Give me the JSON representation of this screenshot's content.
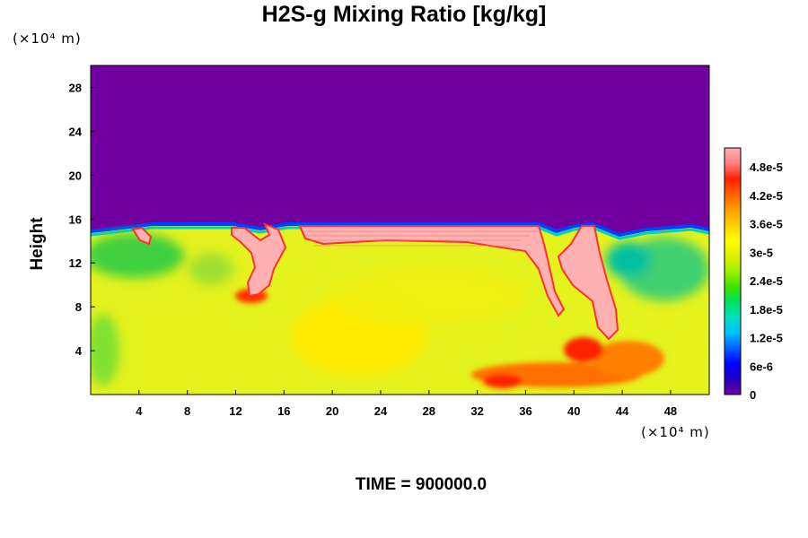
{
  "title": "H2S-g Mixing Ratio [kg/kg]",
  "time_label": "TIME = 900000.0",
  "chart_data": {
    "type": "heatmap",
    "title": "H2S-g Mixing Ratio [kg/kg]",
    "xlabel": "",
    "ylabel": "Height",
    "x_unit": "(×10⁴ m)",
    "y_unit": "(×10⁴ m)",
    "xlim": [
      0,
      51.2
    ],
    "ylim": [
      0,
      30
    ],
    "x_ticks": [
      4,
      8,
      12,
      16,
      20,
      24,
      28,
      32,
      36,
      40,
      44,
      48
    ],
    "y_ticks": [
      4,
      8,
      12,
      16,
      20,
      24,
      28
    ],
    "colorbar": {
      "min": 0,
      "max": 5.2e-05,
      "ticks": [
        "0",
        "6e-6",
        "1.2e-5",
        "1.8e-5",
        "2.4e-5",
        "3e-5",
        "3.6e-5",
        "4.2e-5",
        "4.8e-5"
      ],
      "tick_values": [
        0,
        6e-06,
        1.2e-05,
        1.8e-05,
        2.4e-05,
        3e-05,
        3.6e-05,
        4.2e-05,
        4.8e-05
      ],
      "colors": [
        "#7000a0",
        "#2000c0",
        "#0000ff",
        "#0060ff",
        "#00c0ff",
        "#00e0c0",
        "#00e060",
        "#40e000",
        "#a0f000",
        "#e0f000",
        "#ffff00",
        "#ffd000",
        "#ffa000",
        "#ff6000",
        "#ff2000",
        "#ff8080",
        "#ffb0b0"
      ]
    },
    "field_description_values": {
      "upper_layer_value": 0,
      "upper_layer_base_height": 15.5,
      "background_lower_value": 3.4e-05
    }
  }
}
